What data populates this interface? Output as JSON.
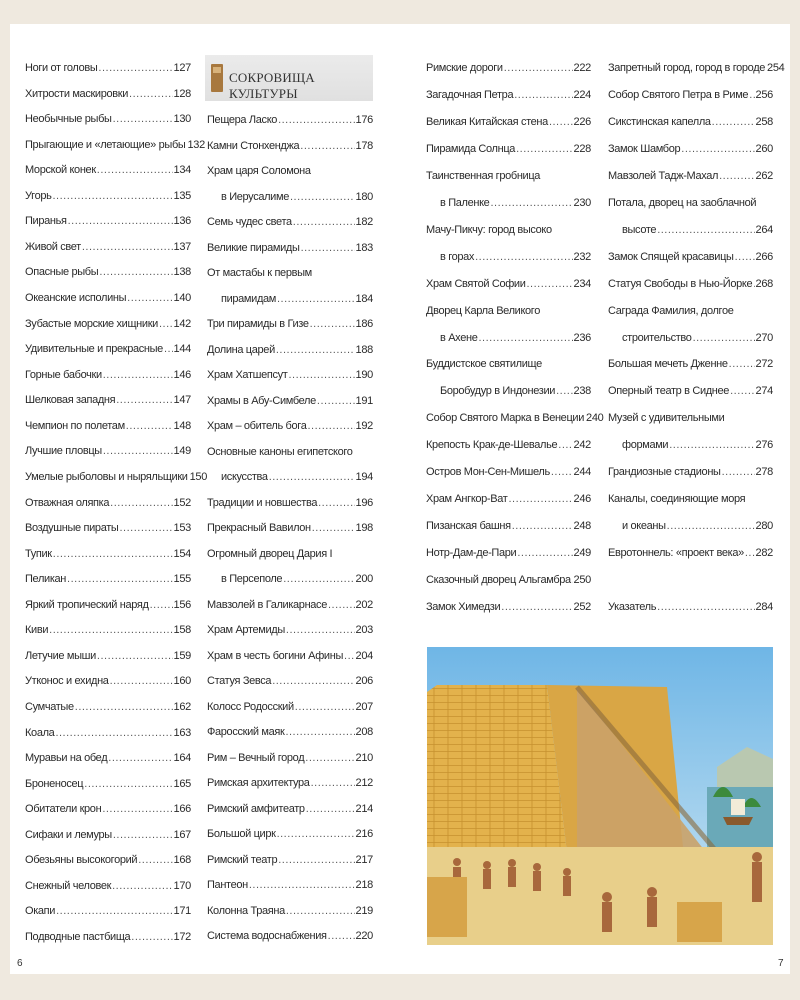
{
  "page_numbers": {
    "left": "6",
    "right": "7"
  },
  "section_header": {
    "title": "СОКРОВИЩА КУЛЬТУРЫ",
    "icon": "column-icon"
  },
  "columns": [
    [
      {
        "t": "Ноги от головы",
        "p": "127"
      },
      {
        "t": "Хитрости маскировки",
        "p": "128"
      },
      {
        "t": "Необычные рыбы",
        "p": "130"
      },
      {
        "t": "Прыгающие и «летающие» рыбы",
        "p": "132"
      },
      {
        "t": "Морской конек",
        "p": "134"
      },
      {
        "t": "Угорь",
        "p": "135"
      },
      {
        "t": "Пиранья",
        "p": "136"
      },
      {
        "t": "Живой свет",
        "p": "137"
      },
      {
        "t": "Опасные рыбы",
        "p": "138"
      },
      {
        "t": "Океанские исполины",
        "p": "140"
      },
      {
        "t": "Зубастые морские хищники",
        "p": "142"
      },
      {
        "t": "Удивительные и прекрасные",
        "p": "144"
      },
      {
        "t": "Горные бабочки",
        "p": "146"
      },
      {
        "t": "Шелковая западня",
        "p": "147"
      },
      {
        "t": "Чемпион по полетам",
        "p": "148"
      },
      {
        "t": "Лучшие пловцы",
        "p": "149"
      },
      {
        "t": "Умелые рыболовы и ныряльщики",
        "p": "150"
      },
      {
        "t": "Отважная оляпка",
        "p": "152"
      },
      {
        "t": "Воздушные пираты",
        "p": "153"
      },
      {
        "t": "Тупик",
        "p": "154"
      },
      {
        "t": "Пеликан",
        "p": "155"
      },
      {
        "t": "Яркий тропический наряд",
        "p": "156"
      },
      {
        "t": "Киви",
        "p": "158"
      },
      {
        "t": "Летучие мыши",
        "p": "159"
      },
      {
        "t": "Утконос и ехидна",
        "p": "160"
      },
      {
        "t": "Сумчатые",
        "p": "162"
      },
      {
        "t": "Коала",
        "p": "163"
      },
      {
        "t": "Муравьи на обед",
        "p": "164"
      },
      {
        "t": "Броненосец",
        "p": "165"
      },
      {
        "t": "Обитатели крон",
        "p": "166"
      },
      {
        "t": "Сифаки и лемуры",
        "p": "167"
      },
      {
        "t": "Обезьяны высокогорий",
        "p": "168"
      },
      {
        "t": "Снежный человек",
        "p": "170"
      },
      {
        "t": "Окапи",
        "p": "171"
      },
      {
        "t": "Подводные пастбища",
        "p": "172"
      }
    ],
    [
      {
        "t": "Пещера Ласко",
        "p": "176"
      },
      {
        "t": "Камни Стонхенджа",
        "p": "178"
      },
      {
        "t": "Храм царя Соломона",
        "t2": "в Иерусалиме",
        "p": "180"
      },
      {
        "t": "Семь чудес света",
        "p": "182"
      },
      {
        "t": "Великие пирамиды",
        "p": "183"
      },
      {
        "t": "От мастабы к первым",
        "t2": "пирамидам",
        "p": "184"
      },
      {
        "t": "Три пирамиды в Гизе",
        "p": "186"
      },
      {
        "t": "Долина царей",
        "p": "188"
      },
      {
        "t": "Храм Хатшепсут",
        "p": "190"
      },
      {
        "t": "Храмы в Абу-Симбеле",
        "p": "191"
      },
      {
        "t": "Храм – обитель бога",
        "p": "192"
      },
      {
        "t": "Основные каноны египетского",
        "t2": "искусства",
        "p": "194"
      },
      {
        "t": "Традиции и новшества",
        "p": "196"
      },
      {
        "t": "Прекрасный Вавилон",
        "p": "198"
      },
      {
        "t": "Огромный дворец Дария I",
        "t2": "в Персеполе",
        "p": "200"
      },
      {
        "t": "Мавзолей в Галикарнасе",
        "p": "202"
      },
      {
        "t": "Храм Артемиды",
        "p": "203"
      },
      {
        "t": "Храм в честь богини Афины",
        "p": "204"
      },
      {
        "t": "Статуя Зевса",
        "p": "206"
      },
      {
        "t": "Колосс Родосский",
        "p": "207"
      },
      {
        "t": "Фаросский маяк",
        "p": "208"
      },
      {
        "t": "Рим – Вечный город",
        "p": "210"
      },
      {
        "t": "Римская архитектура",
        "p": "212"
      },
      {
        "t": "Римский амфитеатр",
        "p": "214"
      },
      {
        "t": "Большой цирк",
        "p": "216"
      },
      {
        "t": "Римский театр",
        "p": "217"
      },
      {
        "t": "Пантеон",
        "p": "218"
      },
      {
        "t": "Колонна Траяна",
        "p": "219"
      },
      {
        "t": "Система водоснабжения",
        "p": "220"
      }
    ],
    [
      {
        "t": "Римские дороги",
        "p": "222"
      },
      {
        "t": "Загадочная Петра",
        "p": "224"
      },
      {
        "t": "Великая Китайская стена",
        "p": "226"
      },
      {
        "t": "Пирамида Солнца",
        "p": "228"
      },
      {
        "t": "Таинственная гробница",
        "t2": "в Паленке",
        "p": "230"
      },
      {
        "t": "Мачу-Пикчу: город высоко",
        "t2": "в горах",
        "p": "232"
      },
      {
        "t": "Храм Святой Софии",
        "p": "234"
      },
      {
        "t": "Дворец Карла Великого",
        "t2": "в Ахене",
        "p": "236"
      },
      {
        "t": "Буддистское святилище",
        "t2": "Боробудур в Индонезии",
        "p": "238"
      },
      {
        "t": "Собор Святого Марка в Венеции",
        "p": "240"
      },
      {
        "t": "Крепость Крак-де-Шевалье",
        "p": "242"
      },
      {
        "t": "Остров Мон-Сен-Мишель",
        "p": "244"
      },
      {
        "t": "Храм Ангкор-Ват",
        "p": "246"
      },
      {
        "t": "Пизанская башня",
        "p": "248"
      },
      {
        "t": "Нотр-Дам-де-Пари",
        "p": "249"
      },
      {
        "t": "Сказочный дворец Альгамбра",
        "p": "250"
      },
      {
        "t": "Замок Химедзи",
        "p": "252"
      }
    ],
    [
      {
        "t": "Запретный город, город в городе",
        "p": "254"
      },
      {
        "t": "Собор Святого Петра в Риме",
        "p": "256"
      },
      {
        "t": "Сикстинская капелла",
        "p": "258"
      },
      {
        "t": "Замок Шамбор",
        "p": "260"
      },
      {
        "t": "Мавзолей Тадж-Махал",
        "p": "262"
      },
      {
        "t": "Потала, дворец на заоблачной",
        "t2": "высоте",
        "p": "264"
      },
      {
        "t": "Замок Спящей красавицы",
        "p": "266"
      },
      {
        "t": "Статуя Свободы в Нью-Йорке",
        "p": "268"
      },
      {
        "t": "Саграда Фамилия, долгое",
        "t2": "строительство",
        "p": "270"
      },
      {
        "t": "Большая мечеть Дженне",
        "p": "272"
      },
      {
        "t": "Оперный театр в Сиднее",
        "p": "274"
      },
      {
        "t": "Музей с удивительными",
        "t2": "формами",
        "p": "276"
      },
      {
        "t": "Грандиозные стадионы",
        "p": "278"
      },
      {
        "t": "Каналы, соединяющие моря",
        "t2": "и океаны",
        "p": "280"
      },
      {
        "t": "Евротоннель: «проект века»",
        "p": "282"
      },
      {
        "gap": true
      },
      {
        "t": "Указатель",
        "p": "284"
      }
    ]
  ],
  "illustration": {
    "subject": "pyramid-construction-illustration"
  }
}
